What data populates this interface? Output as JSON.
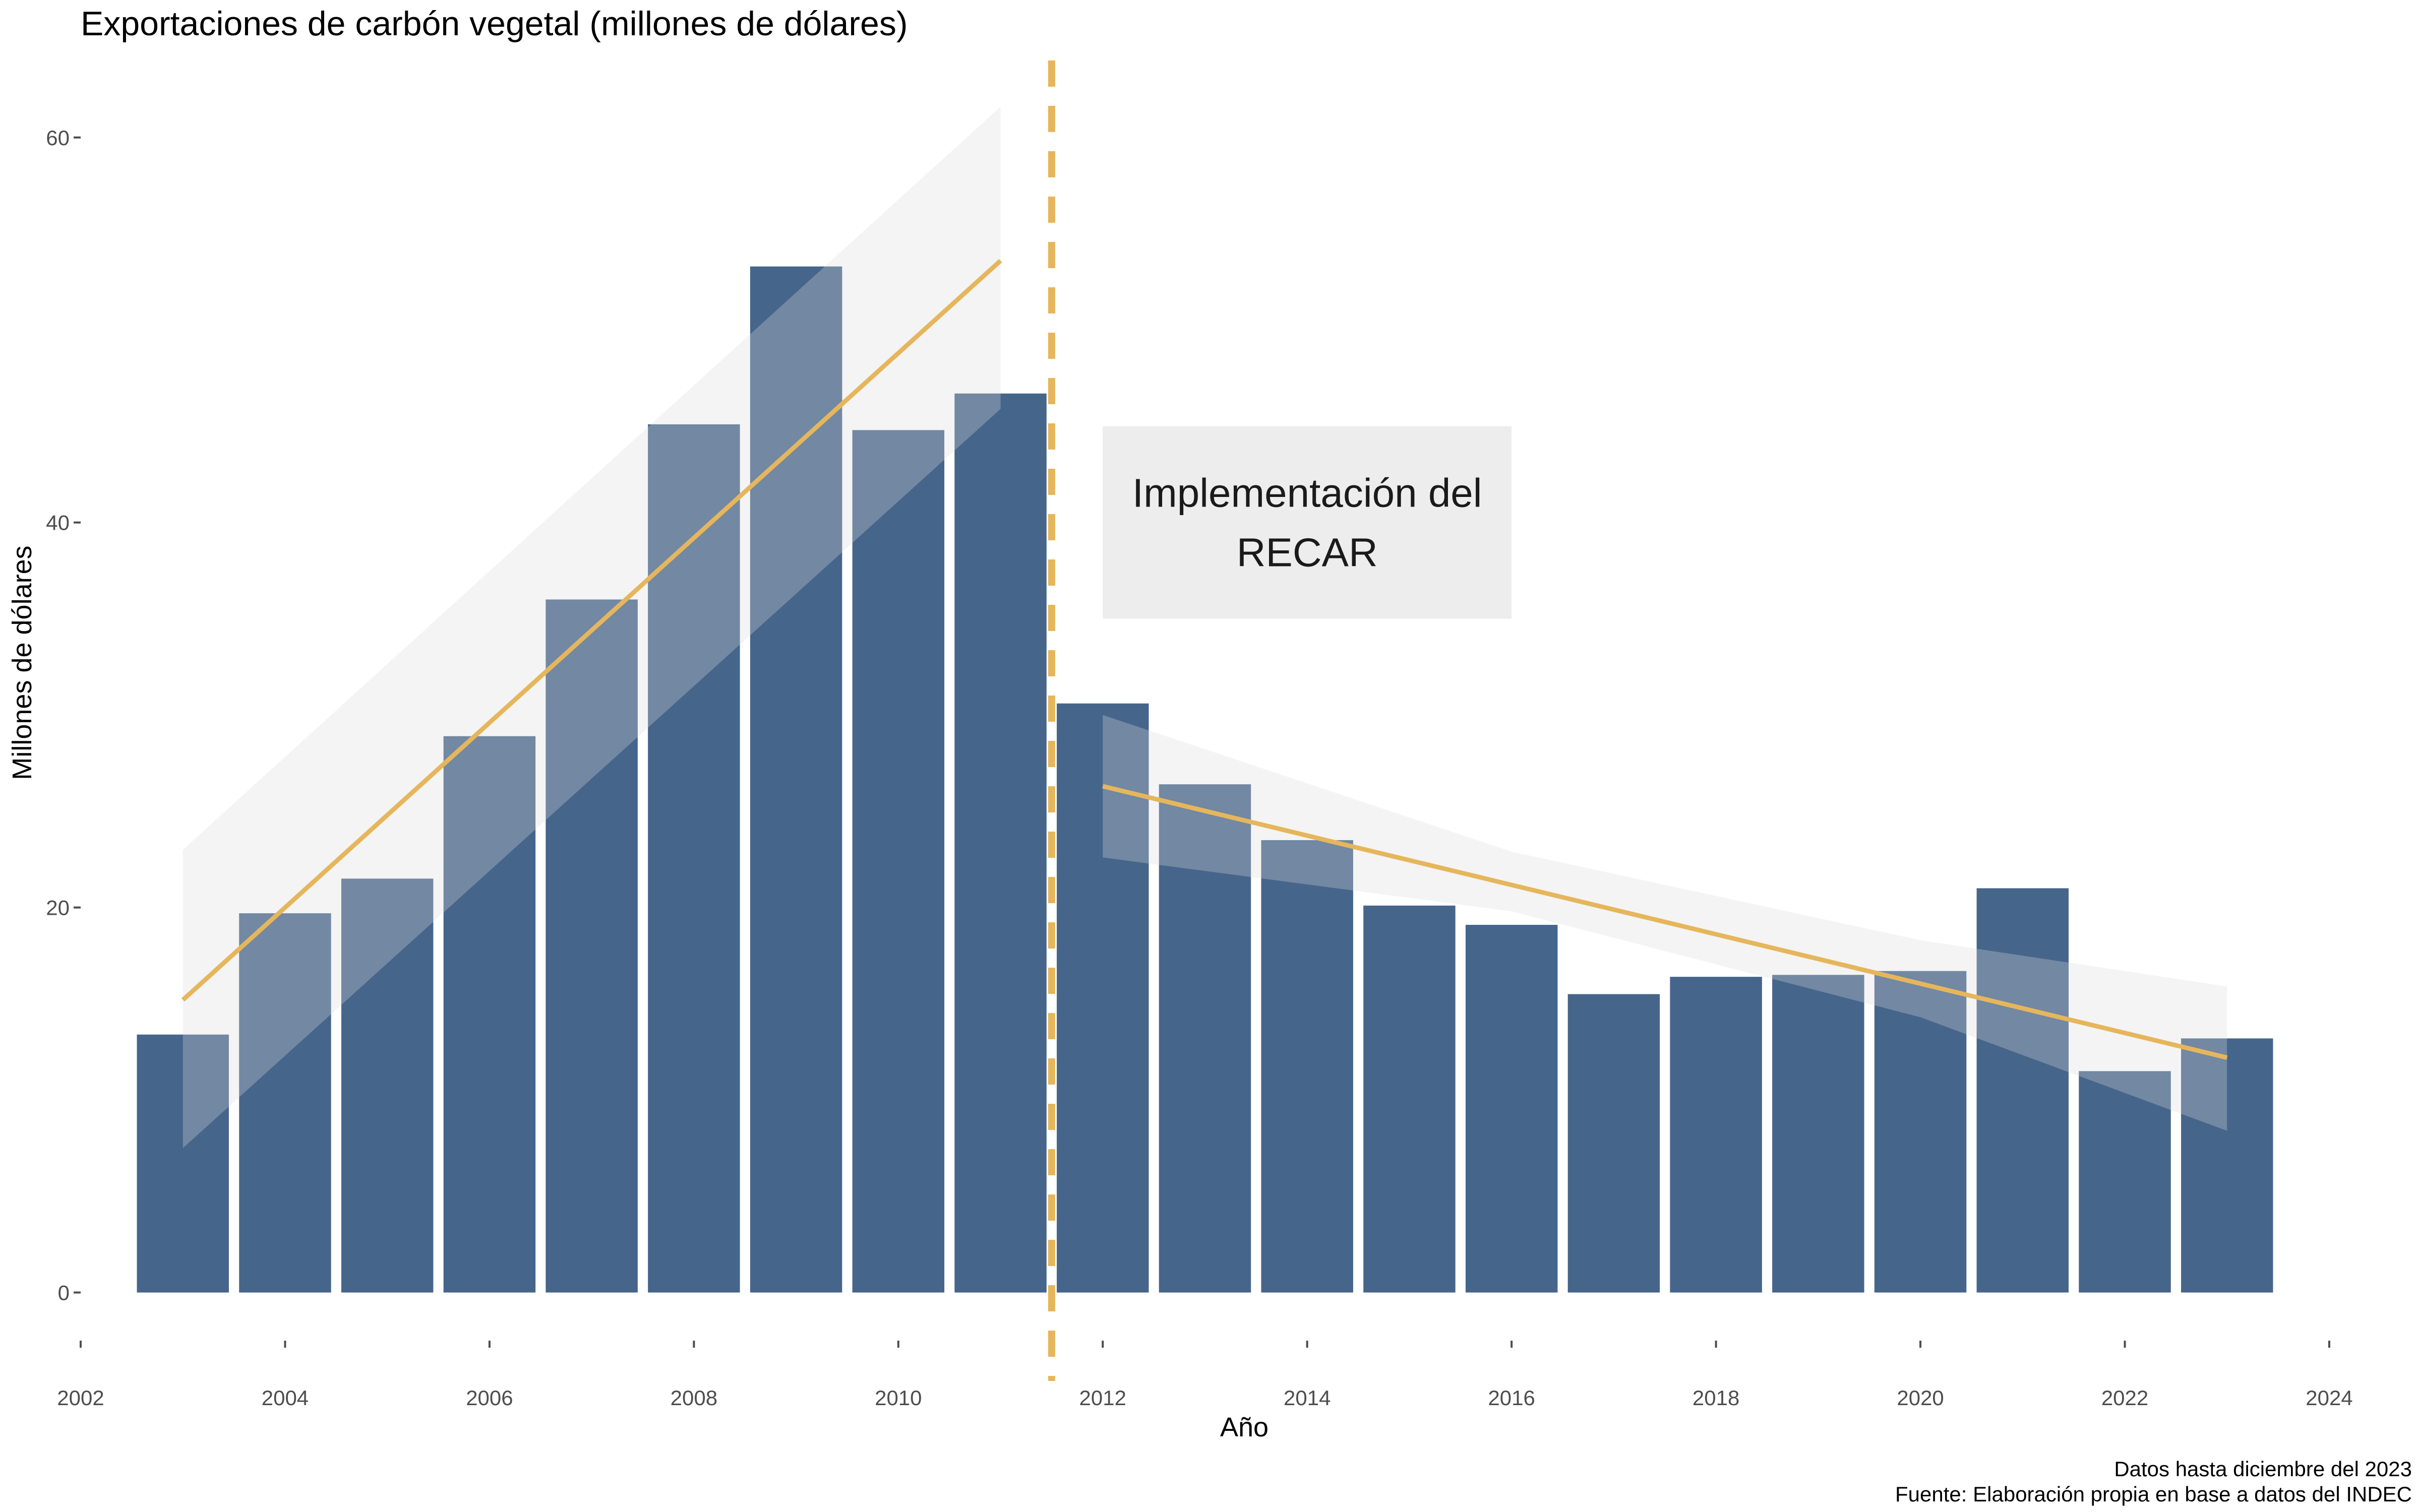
{
  "chart_data": {
    "type": "bar",
    "title": "Exportaciones de carbón vegetal (millones de dólares)",
    "xlabel": "Año",
    "ylabel": "Millones de dólares",
    "x": [
      2003,
      2004,
      2005,
      2006,
      2007,
      2008,
      2009,
      2010,
      2011,
      2012,
      2013,
      2014,
      2015,
      2016,
      2017,
      2018,
      2019,
      2020,
      2021,
      2022,
      2023
    ],
    "values": [
      13.4,
      19.7,
      21.5,
      28.9,
      36.0,
      45.1,
      53.3,
      44.8,
      46.7,
      30.6,
      26.4,
      23.5,
      20.1,
      19.1,
      15.5,
      16.4,
      16.5,
      16.7,
      21.0,
      11.5,
      13.2
    ],
    "xlim": [
      2002,
      2024
    ],
    "ylim": [
      -2.5,
      64
    ],
    "xticks": [
      2002,
      2004,
      2006,
      2008,
      2010,
      2012,
      2014,
      2016,
      2018,
      2020,
      2022,
      2024
    ],
    "yticks": [
      0,
      20,
      40,
      60
    ],
    "grid": false,
    "colors": {
      "bars": "#46658b",
      "trend": "#e6b65c",
      "band": "#d9d9d9",
      "annotation_bg": "#ededed",
      "tick_text": "#4d4d4d"
    },
    "trends": [
      {
        "x_start": 2003,
        "x_end": 2011,
        "y_start": 15.2,
        "y_end": 53.6,
        "band_upper": [
          23.0,
          61.6
        ],
        "band_lower": [
          7.5,
          45.9
        ]
      },
      {
        "x_start": 2012,
        "x_end": 2023,
        "y_start": 26.3,
        "y_end": 12.2,
        "band_upper_points": [
          [
            2012,
            30.0
          ],
          [
            2016,
            22.9
          ],
          [
            2020,
            18.3
          ],
          [
            2023,
            15.9
          ]
        ],
        "band_lower_points": [
          [
            2012,
            22.6
          ],
          [
            2016,
            19.8
          ],
          [
            2020,
            14.3
          ],
          [
            2023,
            8.4
          ]
        ]
      }
    ],
    "vline_x": 2011.5,
    "annotation": {
      "lines": [
        "Implementación del",
        "RECAR"
      ],
      "x_range": [
        2012,
        2016
      ],
      "y_range": [
        35,
        45
      ]
    }
  },
  "caption": {
    "line1": "Datos hasta diciembre del 2023",
    "line2": "Fuente: Elaboración propia en base a datos del INDEC"
  }
}
